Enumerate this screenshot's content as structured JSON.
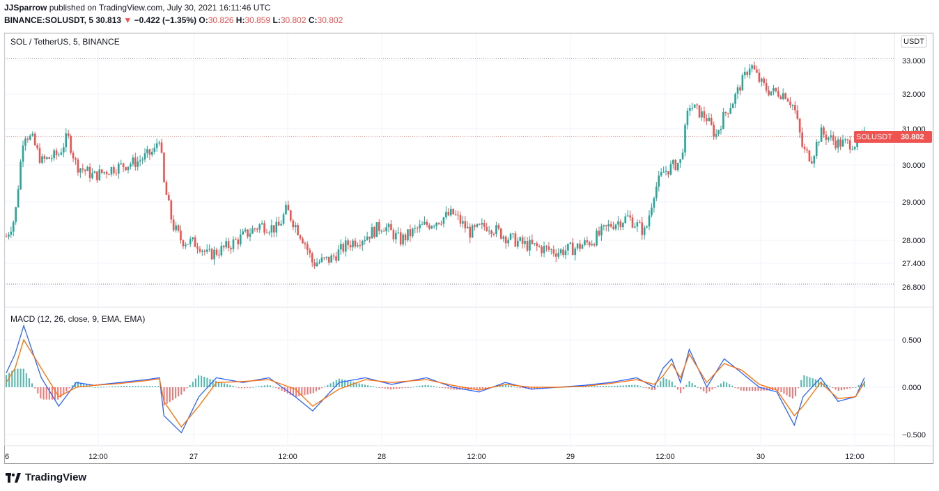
{
  "header": {
    "publisher_line": "JJSparrow published on TradingView.com, July 30, 2021 16:11:46 UTC",
    "symbol": "BINANCE:SOLUSDT, 5",
    "last": "30.813",
    "change_arrow": "▼",
    "change": "−0.422 (−1.35%)",
    "o_label": "O:",
    "o_value": "30.826",
    "h_label": "H:",
    "h_value": "30.859",
    "l_label": "L:",
    "l_value": "30.802",
    "c_label": "C:",
    "c_value": "30.802"
  },
  "price_pane": {
    "legend": "SOL / TetherUS, 5, BINANCE",
    "currency_badge": "USDT",
    "price_labels": [
      "33.000",
      "32.000",
      "31.000",
      "30.000",
      "29.000",
      "28.000",
      "27.400",
      "26.800"
    ],
    "last_price_tag": {
      "symbol": "SOLUSDT",
      "value": "30.802"
    }
  },
  "macd_pane": {
    "legend": "MACD (12, 26, close, 9, EMA, EMA)",
    "labels": [
      "0.500",
      "0.000",
      "−0.500"
    ]
  },
  "time_labels": [
    "6",
    "12:00",
    "27",
    "12:00",
    "28",
    "12:00",
    "29",
    "12:00",
    "30",
    "12:00"
  ],
  "footer": {
    "brand": "TradingView"
  },
  "colors": {
    "up": "#26a69a",
    "down": "#ef5350",
    "macd_line": "#2962ff",
    "signal_line": "#ff6d00",
    "hist_up": "#26a69a",
    "hist_down": "#ef5350",
    "price_tag": "#ef5350"
  },
  "chart_data": [
    {
      "type": "candlestick",
      "title": "SOL / TetherUS, 5, BINANCE",
      "x_ticks": [
        "6",
        "12:00",
        "27",
        "12:00",
        "28",
        "12:00",
        "29",
        "12:00",
        "30",
        "12:00"
      ],
      "y_ticks": [
        33.0,
        32.0,
        31.0,
        30.0,
        29.0,
        28.0,
        27.4,
        26.8
      ],
      "ylim": [
        26.8,
        33.0
      ],
      "price_path": [
        [
          0,
          28.1
        ],
        [
          0.01,
          28.6
        ],
        [
          0.02,
          30.9
        ],
        [
          0.03,
          30.7
        ],
        [
          0.04,
          30.1
        ],
        [
          0.06,
          30.3
        ],
        [
          0.07,
          30.8
        ],
        [
          0.08,
          30.0
        ],
        [
          0.1,
          29.7
        ],
        [
          0.12,
          29.9
        ],
        [
          0.15,
          30.1
        ],
        [
          0.17,
          30.4
        ],
        [
          0.16,
          30.2
        ],
        [
          0.17,
          30.5
        ],
        [
          0.175,
          30.8
        ],
        [
          0.18,
          29.5
        ],
        [
          0.19,
          28.4
        ],
        [
          0.2,
          28.0
        ],
        [
          0.22,
          27.9
        ],
        [
          0.23,
          27.6
        ],
        [
          0.25,
          27.8
        ],
        [
          0.27,
          28.1
        ],
        [
          0.29,
          28.4
        ],
        [
          0.31,
          28.3
        ],
        [
          0.32,
          28.8
        ],
        [
          0.33,
          28.4
        ],
        [
          0.34,
          28.0
        ],
        [
          0.35,
          27.4
        ],
        [
          0.37,
          27.5
        ],
        [
          0.39,
          27.9
        ],
        [
          0.41,
          28.1
        ],
        [
          0.43,
          28.4
        ],
        [
          0.45,
          28.0
        ],
        [
          0.47,
          28.3
        ],
        [
          0.49,
          28.5
        ],
        [
          0.51,
          28.7
        ],
        [
          0.53,
          28.2
        ],
        [
          0.55,
          28.4
        ],
        [
          0.57,
          28.1
        ],
        [
          0.59,
          27.9
        ],
        [
          0.61,
          27.8
        ],
        [
          0.63,
          27.7
        ],
        [
          0.65,
          27.8
        ],
        [
          0.67,
          28.0
        ],
        [
          0.69,
          28.4
        ],
        [
          0.71,
          28.6
        ],
        [
          0.73,
          28.2
        ],
        [
          0.74,
          29.3
        ],
        [
          0.75,
          29.8
        ],
        [
          0.77,
          30.1
        ],
        [
          0.78,
          31.7
        ],
        [
          0.8,
          31.3
        ],
        [
          0.81,
          30.8
        ],
        [
          0.82,
          31.4
        ],
        [
          0.83,
          31.8
        ],
        [
          0.85,
          32.9
        ],
        [
          0.86,
          32.4
        ],
        [
          0.87,
          32.1
        ],
        [
          0.89,
          32.0
        ],
        [
          0.9,
          31.6
        ],
        [
          0.91,
          30.4
        ],
        [
          0.92,
          30.2
        ],
        [
          0.93,
          30.9
        ],
        [
          0.95,
          30.6
        ],
        [
          0.97,
          30.6
        ],
        [
          0.98,
          30.8
        ]
      ]
    },
    {
      "type": "line",
      "title": "MACD (12, 26, close, 9, EMA, EMA)",
      "y_ticks": [
        0.5,
        0.0,
        -0.5
      ],
      "series": [
        {
          "name": "MACD",
          "x": [
            0,
            0.01,
            0.02,
            0.04,
            0.06,
            0.08,
            0.1,
            0.13,
            0.16,
            0.175,
            0.18,
            0.2,
            0.22,
            0.24,
            0.27,
            0.3,
            0.33,
            0.35,
            0.38,
            0.41,
            0.44,
            0.48,
            0.51,
            0.54,
            0.57,
            0.6,
            0.63,
            0.66,
            0.69,
            0.72,
            0.74,
            0.75,
            0.76,
            0.77,
            0.78,
            0.8,
            0.82,
            0.84,
            0.86,
            0.88,
            0.9,
            0.91,
            0.93,
            0.95,
            0.97,
            0.98
          ],
          "values": [
            0.15,
            0.35,
            0.65,
            0.1,
            -0.2,
            0.05,
            0.02,
            0.05,
            0.08,
            0.1,
            -0.3,
            -0.48,
            -0.1,
            0.1,
            0.05,
            0.1,
            -0.1,
            -0.25,
            0.05,
            0.1,
            0.03,
            0.1,
            0.0,
            -0.05,
            0.05,
            -0.02,
            0.0,
            0.02,
            0.05,
            0.1,
            0.0,
            0.2,
            0.3,
            0.05,
            0.4,
            0.0,
            0.3,
            0.15,
            0.0,
            -0.05,
            -0.4,
            -0.1,
            0.1,
            -0.15,
            -0.1,
            0.1
          ]
        },
        {
          "name": "Signal",
          "x": [
            0,
            0.01,
            0.02,
            0.04,
            0.06,
            0.08,
            0.1,
            0.13,
            0.16,
            0.175,
            0.18,
            0.2,
            0.22,
            0.24,
            0.27,
            0.3,
            0.33,
            0.35,
            0.38,
            0.41,
            0.44,
            0.48,
            0.51,
            0.54,
            0.57,
            0.6,
            0.63,
            0.66,
            0.69,
            0.72,
            0.74,
            0.75,
            0.76,
            0.77,
            0.78,
            0.8,
            0.82,
            0.84,
            0.86,
            0.88,
            0.9,
            0.91,
            0.93,
            0.95,
            0.97,
            0.98
          ],
          "values": [
            0.05,
            0.2,
            0.5,
            0.2,
            -0.1,
            0.0,
            0.02,
            0.04,
            0.07,
            0.09,
            -0.15,
            -0.42,
            -0.2,
            0.05,
            0.06,
            0.08,
            -0.02,
            -0.2,
            -0.02,
            0.08,
            0.05,
            0.08,
            0.02,
            -0.03,
            0.03,
            0.0,
            0.0,
            0.01,
            0.04,
            0.08,
            0.03,
            0.12,
            0.25,
            0.1,
            0.35,
            0.05,
            0.25,
            0.18,
            0.03,
            -0.03,
            -0.3,
            -0.2,
            0.05,
            -0.12,
            -0.1,
            0.05
          ]
        }
      ]
    }
  ]
}
